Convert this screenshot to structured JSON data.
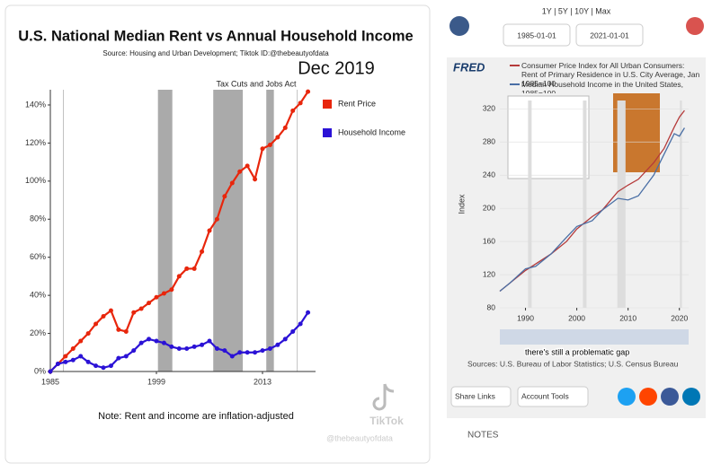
{
  "chart_data": [
    {
      "type": "line",
      "title": "U.S. National Median Rent vs Annual Household Income",
      "source": "Source: Housing and Urban Development;  Tiktok ID:@thebeautyofdata",
      "annotations": [
        "Dec 2019",
        "Tax Cuts and Jobs Act"
      ],
      "note": "Note: Rent and income are inflation-adjusted",
      "x": [
        1985,
        1986,
        1987,
        1988,
        1989,
        1990,
        1991,
        1992,
        1993,
        1994,
        1995,
        1996,
        1997,
        1998,
        1999,
        2000,
        2001,
        2002,
        2003,
        2004,
        2005,
        2006,
        2007,
        2008,
        2009,
        2010,
        2011,
        2012,
        2013,
        2014,
        2015,
        2016,
        2017,
        2018,
        2019
      ],
      "series": [
        {
          "name": "Rent Price",
          "color": "#e8260c",
          "values": [
            0,
            4,
            8,
            12,
            16,
            20,
            25,
            29,
            32,
            22,
            21,
            31,
            33,
            36,
            39,
            41,
            43,
            50,
            54,
            54,
            63,
            74,
            80,
            92,
            99,
            105,
            108,
            101,
            117,
            119,
            123,
            128,
            137,
            141,
            147
          ]
        },
        {
          "name": "Household Income",
          "color": "#2b12d6",
          "values": [
            0,
            4,
            5,
            6,
            8,
            5,
            3,
            2,
            3,
            7,
            8,
            11,
            15,
            17,
            16,
            15,
            13,
            12,
            12,
            13,
            14,
            16,
            12,
            11,
            8,
            10,
            10,
            10,
            11,
            12,
            14,
            17,
            21,
            25,
            31
          ]
        }
      ],
      "shaded": [
        [
          1999.2,
          2001.1
        ],
        [
          2006.5,
          2010.4
        ],
        [
          2013.5,
          2014.5
        ]
      ],
      "reference_lines": [
        1986.7,
        2017.6
      ],
      "xlim": [
        1985,
        2020
      ],
      "xticks": [
        1985,
        1999,
        2013
      ],
      "ylim": [
        0,
        148
      ],
      "yticks": [
        {
          "value": 0,
          "label": "0%"
        },
        {
          "value": 20,
          "label": "20%"
        },
        {
          "value": 40,
          "label": "40%"
        },
        {
          "value": 60,
          "label": "60%"
        },
        {
          "value": 80,
          "label": "80%"
        },
        {
          "value": 100,
          "label": "100%"
        },
        {
          "value": 120,
          "label": "120%"
        },
        {
          "value": 140,
          "label": "140%"
        }
      ],
      "grid": false
    },
    {
      "type": "line",
      "y_label": "Index",
      "x": [
        1985,
        1987,
        1990,
        1992,
        1995,
        1998,
        2000,
        2003,
        2005,
        2008,
        2010,
        2012,
        2015,
        2017,
        2019,
        2020,
        2021
      ],
      "series": [
        {
          "name": "Consumer Price Index for All Urban Consumers: Rent of Primary Residence in U.S. City Average, Jan 1985=100",
          "color": "#b53a3a",
          "values": [
            100,
            110,
            125,
            133,
            145,
            160,
            175,
            190,
            198,
            220,
            228,
            235,
            255,
            272,
            298,
            310,
            318
          ]
        },
        {
          "name": "Median Household Income in the United States, 1985=100",
          "color": "#4a6fa5",
          "values": [
            100,
            110,
            127,
            130,
            145,
            165,
            178,
            185,
            198,
            212,
            210,
            215,
            240,
            265,
            290,
            287,
            297
          ]
        }
      ],
      "shaded": [
        [
          1990.5,
          1991.2
        ],
        [
          2001.2,
          2001.9
        ],
        [
          2007.9,
          2009.5
        ],
        [
          2020.1,
          2020.5
        ]
      ],
      "xlim": [
        1985,
        2021.8
      ],
      "xticks": [
        1990,
        2000,
        2010,
        2020
      ],
      "ylim": [
        80,
        330
      ],
      "yticks": [
        80,
        120,
        160,
        200,
        240,
        280,
        320
      ],
      "grid": true
    }
  ],
  "watermark": {
    "brand": "TikTok",
    "handle": "@thebeautyofdata"
  },
  "fred": {
    "range_buttons": "1Y | 5Y | 10Y | Max",
    "start_date": "1985-01-01",
    "end_date": "2021-01-01",
    "logo": "FRED",
    "caption": "there's still a problematic gap",
    "sources": "Sources: U.S. Bureau of Labor Statistics; U.S. Census Bureau",
    "share_links": "Share Links",
    "account_tools": "Account Tools",
    "notes": "NOTES"
  }
}
